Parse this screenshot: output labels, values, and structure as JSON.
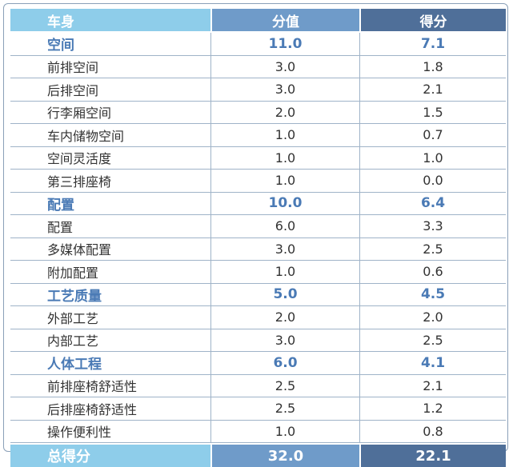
{
  "header": {
    "col1": "车身",
    "col2": "分值",
    "col3": "得分"
  },
  "rows": [
    {
      "name": "空间",
      "score": "11.0",
      "got": "7.1",
      "section": true
    },
    {
      "name": "前排空间",
      "score": "3.0",
      "got": "1.8",
      "section": false
    },
    {
      "name": "后排空间",
      "score": "3.0",
      "got": "2.1",
      "section": false
    },
    {
      "name": "行李厢空间",
      "score": "2.0",
      "got": "1.5",
      "section": false
    },
    {
      "name": "车内储物空间",
      "score": "1.0",
      "got": "0.7",
      "section": false
    },
    {
      "name": "空间灵活度",
      "score": "1.0",
      "got": "1.0",
      "section": false
    },
    {
      "name": "第三排座椅",
      "score": "1.0",
      "got": "0.0",
      "section": false
    },
    {
      "name": "配置",
      "score": "10.0",
      "got": "6.4",
      "section": true
    },
    {
      "name": "配置",
      "score": "6.0",
      "got": "3.3",
      "section": false
    },
    {
      "name": "多媒体配置",
      "score": "3.0",
      "got": "2.5",
      "section": false
    },
    {
      "name": "附加配置",
      "score": "1.0",
      "got": "0.6",
      "section": false
    },
    {
      "name": "工艺质量",
      "score": "5.0",
      "got": "4.5",
      "section": true
    },
    {
      "name": "外部工艺",
      "score": "2.0",
      "got": "2.0",
      "section": false
    },
    {
      "name": "内部工艺",
      "score": "3.0",
      "got": "2.5",
      "section": false
    },
    {
      "name": "人体工程",
      "score": "6.0",
      "got": "4.1",
      "section": true
    },
    {
      "name": "前排座椅舒适性",
      "score": "2.5",
      "got": "2.1",
      "section": false
    },
    {
      "name": "后排座椅舒适性",
      "score": "2.5",
      "got": "1.2",
      "section": false
    },
    {
      "name": "操作便利性",
      "score": "1.0",
      "got": "0.8",
      "section": false
    }
  ],
  "total": {
    "label": "总得分",
    "score": "32.0",
    "got": "22.1"
  },
  "colors": {
    "header_light": "#8ecdea",
    "header_mid": "#6f9bc9",
    "header_dark": "#4f6f99",
    "section_text": "#4a7ab5"
  }
}
